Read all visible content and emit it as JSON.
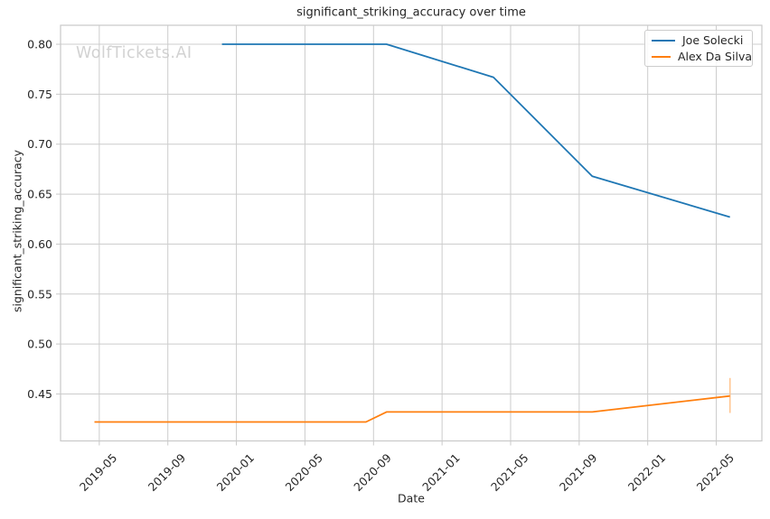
{
  "watermark": "WolfTickets.AI",
  "colors": {
    "background": "#ffffff",
    "text": "#262626",
    "grid": "#cccccc",
    "spine": "#c9c9c9",
    "watermark": "#d2d2d2"
  },
  "chart_data": {
    "type": "line",
    "title": "significant_striking_accuracy over time",
    "xlabel": "Date",
    "ylabel": "significant_striking_accuracy",
    "grid": true,
    "legend_position": "upper right",
    "xlim": [
      2019.145,
      2022.555
    ],
    "ylim": [
      0.403,
      0.819
    ],
    "x_ticks": [
      {
        "label": "2019-05",
        "t": 2019.3333
      },
      {
        "label": "2019-09",
        "t": 2019.6667
      },
      {
        "label": "2020-01",
        "t": 2020.0
      },
      {
        "label": "2020-05",
        "t": 2020.3333
      },
      {
        "label": "2020-09",
        "t": 2020.6667
      },
      {
        "label": "2021-01",
        "t": 2021.0
      },
      {
        "label": "2021-05",
        "t": 2021.3333
      },
      {
        "label": "2021-09",
        "t": 2021.6667
      },
      {
        "label": "2022-01",
        "t": 2022.0
      },
      {
        "label": "2022-05",
        "t": 2022.3333
      }
    ],
    "y_ticks": [
      {
        "label": "0.45",
        "v": 0.45
      },
      {
        "label": "0.50",
        "v": 0.5
      },
      {
        "label": "0.55",
        "v": 0.55
      },
      {
        "label": "0.60",
        "v": 0.6
      },
      {
        "label": "0.65",
        "v": 0.65
      },
      {
        "label": "0.70",
        "v": 0.7
      },
      {
        "label": "0.75",
        "v": 0.75
      },
      {
        "label": "0.80",
        "v": 0.8
      }
    ],
    "series": [
      {
        "name": "Joe Solecki",
        "color": "#1f77b4",
        "points": [
          [
            2019.93,
            0.8
          ],
          [
            2020.73,
            0.8
          ],
          [
            2021.25,
            0.767
          ],
          [
            2021.73,
            0.668
          ],
          [
            2022.4,
            0.627
          ]
        ]
      },
      {
        "name": "Alex Da Silva",
        "color": "#ff7f0e",
        "points": [
          [
            2019.31,
            0.422
          ],
          [
            2020.63,
            0.422
          ],
          [
            2020.73,
            0.432
          ],
          [
            2021.73,
            0.432
          ],
          [
            2022.4,
            0.448
          ]
        ],
        "error_bar": {
          "x": 2022.4,
          "y_min": 0.431,
          "y_max": 0.466,
          "color": "#ffc693"
        }
      }
    ]
  }
}
